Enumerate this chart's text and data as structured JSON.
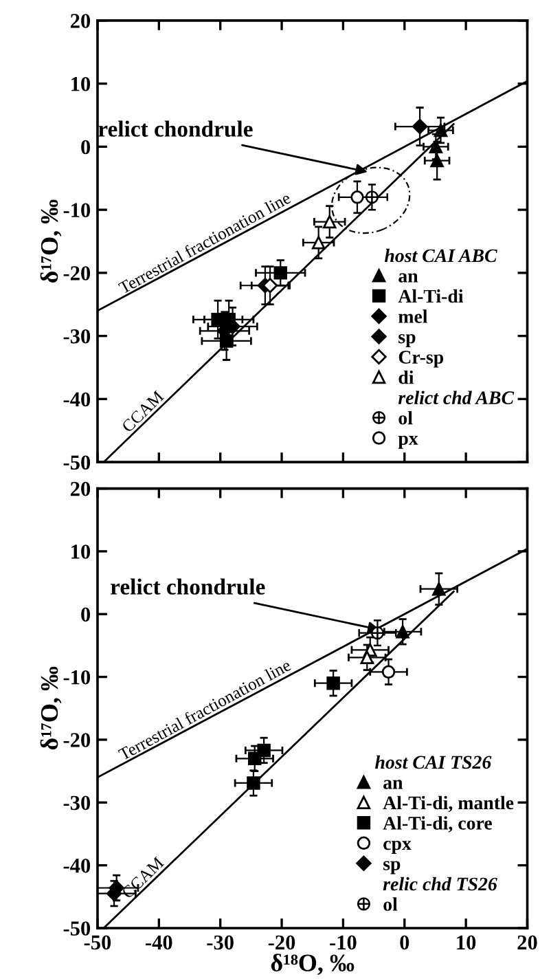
{
  "chart_data": [
    {
      "type": "scatter",
      "ylabel": "δ¹⁷O, ‰",
      "legend_title": "host CAI ABC",
      "legend": "lower right",
      "tick_labels": "y",
      "xlim": [
        -50,
        20
      ],
      "ylim": [
        -50,
        20
      ],
      "xticks": [
        -50,
        -40,
        -30,
        -20,
        -10,
        0,
        10,
        20
      ],
      "yticks": [
        -50,
        -40,
        -30,
        -20,
        -10,
        0,
        10,
        20
      ],
      "annotations": [
        {
          "text": "relict chondrule",
          "x": -6,
          "y": -4
        },
        "relict chd ABC"
      ],
      "series": [
        {
          "type": "line",
          "name": "Terrestrial fractionation line",
          "color": "#000000",
          "x": [
            -50,
            20
          ],
          "values": [
            -26,
            10.4
          ]
        },
        {
          "type": "line",
          "name": "CCAM",
          "color": "#000000",
          "x": [
            -49,
            8
          ],
          "values": [
            -50,
            3.6
          ]
        },
        {
          "name": "an",
          "color": "#000000",
          "marker": "triangle",
          "x": [
            5.9,
            5.1,
            5.3
          ],
          "values": [
            2.6,
            0,
            -2.2
          ],
          "xerrors": [
            2,
            2,
            2
          ],
          "errors": [
            2,
            2,
            3
          ]
        },
        {
          "name": "Al-Ti-di",
          "color": "#000000",
          "marker": "square",
          "x": [
            -20.2,
            -30.4,
            -28.6,
            -29
          ],
          "values": [
            -20,
            -27.4,
            -27.4,
            -30.8
          ],
          "xerrors": [
            4,
            4,
            4,
            4
          ],
          "errors": [
            2,
            3,
            3,
            3
          ]
        },
        {
          "name": "mel",
          "color": "#000000",
          "marker": "diamond",
          "x": [
            2.5,
            -22.7
          ],
          "values": [
            3.2,
            -22
          ],
          "xerrors": [
            4,
            4
          ],
          "errors": [
            3,
            3
          ]
        },
        {
          "name": "sp",
          "color": "#000000",
          "marker": "diamond",
          "x": [
            -29.3,
            -28
          ],
          "values": [
            -29.2,
            -28.5
          ],
          "xerrors": [
            4,
            4
          ],
          "errors": [
            3,
            3
          ]
        },
        {
          "name": "Cr-sp",
          "color": "#000000",
          "marker": "diamond",
          "x": [
            -21.9
          ],
          "values": [
            -22
          ],
          "xerrors": [
            3
          ],
          "errors": [
            3
          ]
        },
        {
          "name": "di",
          "color": "#000000",
          "marker": "triangle",
          "x": [
            -12.2,
            -14
          ],
          "values": [
            -11.9,
            -15.2
          ],
          "xerrors": [
            2.5,
            2.5
          ],
          "errors": [
            2.5,
            2.5
          ]
        },
        {
          "name": "ol",
          "color": "#000000",
          "marker": "cross",
          "x": [
            -5.3
          ],
          "values": [
            -8
          ],
          "xerrors": [
            2.5
          ],
          "errors": [
            2
          ]
        },
        {
          "name": "px",
          "color": "#000000",
          "marker": "circle",
          "x": [
            -7.7
          ],
          "values": [
            -8
          ],
          "xerrors": [
            3
          ],
          "errors": [
            2.5
          ]
        }
      ]
    },
    {
      "type": "scatter",
      "xlabel": "δ¹⁸O, ‰",
      "ylabel": "δ¹⁷O, ‰",
      "legend_title": "host CAI TS26",
      "legend": "lower right",
      "xlim": [
        -50,
        20
      ],
      "ylim": [
        -50,
        20
      ],
      "xticks": [
        -50,
        -40,
        -30,
        -20,
        -10,
        0,
        10,
        20
      ],
      "yticks": [
        -50,
        -40,
        -30,
        -20,
        -10,
        0,
        10,
        20
      ],
      "annotations": [
        {
          "text": "relict chondrule",
          "x": -4,
          "y": -2.5
        },
        "relic chd TS26"
      ],
      "series": [
        {
          "type": "line",
          "name": "Terrestrial fractionation line",
          "color": "#000000",
          "x": [
            -50,
            20
          ],
          "values": [
            -26,
            10.4
          ]
        },
        {
          "type": "line",
          "name": "CCAM",
          "color": "#000000",
          "x": [
            -49,
            8
          ],
          "values": [
            -50,
            3.6
          ]
        },
        {
          "name": "an",
          "color": "#000000",
          "marker": "triangle",
          "x": [
            5.6,
            -0.3
          ],
          "values": [
            4.0,
            -2.8
          ],
          "xerrors": [
            3,
            3
          ],
          "errors": [
            2.5,
            2
          ]
        },
        {
          "name": "Al-Ti-di, mantle",
          "color": "#000000",
          "marker": "triangle",
          "x": [
            -5.6,
            -6.1
          ],
          "values": [
            -5.7,
            -6.9
          ],
          "xerrors": [
            3,
            3
          ],
          "errors": [
            2,
            2
          ]
        },
        {
          "name": "Al-Ti-di, core",
          "color": "#000000",
          "marker": "square",
          "x": [
            -11.6,
            -24.4,
            -22.9,
            -24.6
          ],
          "values": [
            -11,
            -23,
            -21.7,
            -26.9
          ],
          "xerrors": [
            3,
            3,
            3,
            3
          ],
          "errors": [
            2,
            2,
            2,
            2
          ]
        },
        {
          "name": "cpx",
          "color": "#000000",
          "marker": "circle",
          "x": [
            -2.6
          ],
          "values": [
            -9.2
          ],
          "xerrors": [
            3
          ],
          "errors": [
            2
          ]
        },
        {
          "name": "sp",
          "color": "#000000",
          "marker": "diamond",
          "x": [
            -46.9,
            -47.3
          ],
          "values": [
            -43.6,
            -44.5
          ],
          "xerrors": [
            3.5,
            3.5
          ],
          "errors": [
            2,
            2
          ]
        },
        {
          "name": "ol",
          "color": "#000000",
          "marker": "cross",
          "x": [
            -4.4
          ],
          "values": [
            -3.0
          ],
          "xerrors": [
            3
          ],
          "errors": [
            2
          ]
        }
      ]
    }
  ]
}
